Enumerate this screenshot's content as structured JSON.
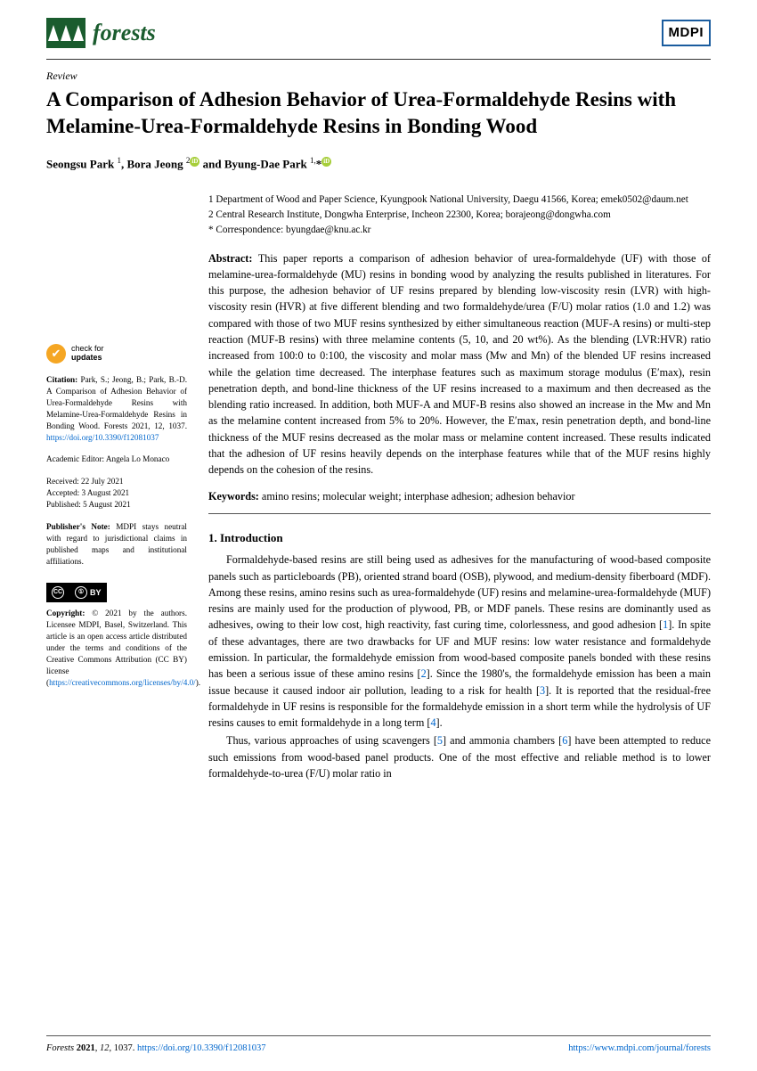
{
  "journal": {
    "name": "forests"
  },
  "publisher_logo": "MDPI",
  "article_type": "Review",
  "title": "A Comparison of Adhesion Behavior of Urea-Formaldehyde Resins with Melamine-Urea-Formaldehyde Resins in Bonding Wood",
  "authors_html": "Seongsu Park <sup>1</sup>, Bora Jeong <sup>2</sup><span class='orcid'>iD</span> and Byung-Dae Park <sup>1,</sup>*<span class='orcid'>iD</span>",
  "affiliations": {
    "a1": "1    Department of Wood and Paper Science, Kyungpook National University, Daegu 41566, Korea; emek0502@daum.net",
    "a2": "2    Central Research Institute, Dongwha Enterprise, Incheon 22300, Korea; borajeong@dongwha.com",
    "corr": "*    Correspondence: byungdae@knu.ac.kr"
  },
  "abstract": "This paper reports a comparison of adhesion behavior of urea-formaldehyde (UF) with those of melamine-urea-formaldehyde (MU) resins in bonding wood by analyzing the results published in literatures. For this purpose, the adhesion behavior of UF resins prepared by blending low-viscosity resin (LVR) with high-viscosity resin (HVR) at five different blending and two formaldehyde/urea (F/U) molar ratios (1.0 and 1.2) was compared with those of two MUF resins synthesized by either simultaneous reaction (MUF-A resins) or multi-step reaction (MUF-B resins) with three melamine contents (5, 10, and 20 wt%). As the blending (LVR:HVR) ratio increased from 100:0 to 0:100, the viscosity and molar mass (Mw and Mn) of the blended UF resins increased while the gelation time decreased. The interphase features such as maximum storage modulus (E′max), resin penetration depth, and bond-line thickness of the UF resins increased to a maximum and then decreased as the blending ratio increased. In addition, both MUF-A and MUF-B resins also showed an increase in the Mw and Mn as the melamine content increased from 5% to 20%. However, the E′max, resin penetration depth, and bond-line thickness of the MUF resins decreased as the molar mass or melamine content increased. These results indicated that the adhesion of UF resins heavily depends on the interphase features while that of the MUF resins highly depends on the cohesion of the resins.",
  "keywords": "amino resins; molecular weight; interphase adhesion; adhesion behavior",
  "section1_title": "1. Introduction",
  "intro_p1": "Formaldehyde-based resins are still being used as adhesives for the manufacturing of wood-based composite panels such as particleboards (PB), oriented strand board (OSB), plywood, and medium-density fiberboard (MDF). Among these resins, amino resins such as urea-formaldehyde (UF) resins and melamine-urea-formaldehyde (MUF) resins are mainly used for the production of plywood, PB, or MDF panels. These resins are dominantly used as adhesives, owing to their low cost, high reactivity, fast curing time, colorlessness, and good adhesion [1]. In spite of these advantages, there are two drawbacks for UF and MUF resins: low water resistance and formaldehyde emission. In particular, the formaldehyde emission from wood-based composite panels bonded with these resins has been a serious issue of these amino resins [2]. Since the 1980's, the formaldehyde emission has been a main issue because it caused indoor air pollution, leading to a risk for health [3]. It is reported that the residual-free formaldehyde in UF resins is responsible for the formaldehyde emission in a short term while the hydrolysis of UF resins causes to emit formaldehyde in a long term [4].",
  "intro_p2": "Thus, various approaches of using scavengers [5] and ammonia chambers [6] have been attempted to reduce such emissions from wood-based panel products. One of the most effective and reliable method is to lower formaldehyde-to-urea (F/U) molar ratio in",
  "sidebar": {
    "check_updates": {
      "line1": "check for",
      "line2": "updates"
    },
    "citation": "Citation: Park, S.; Jeong, B.; Park, B.-D. A Comparison of Adhesion Behavior of Urea-Formaldehyde Resins with Melamine-Urea-Formaldehyde Resins in Bonding Wood. Forests 2021, 12, 1037. https://doi.org/10.3390/f12081037",
    "editor": "Academic Editor: Angela Lo Monaco",
    "dates": "Received: 22 July 2021\nAccepted: 3 August 2021\nPublished: 5 August 2021",
    "note": "Publisher's Note: MDPI stays neutral with regard to jurisdictional claims in published maps and institutional affiliations.",
    "copyright": "Copyright: © 2021 by the authors. Licensee MDPI, Basel, Switzerland. This article is an open access article distributed under the terms and conditions of the Creative Commons Attribution (CC BY) license (https://creativecommons.org/licenses/by/4.0/)."
  },
  "footer": {
    "left": "Forests 2021, 12, 1037. https://doi.org/10.3390/f12081037",
    "right": "https://www.mdpi.com/journal/forests"
  }
}
